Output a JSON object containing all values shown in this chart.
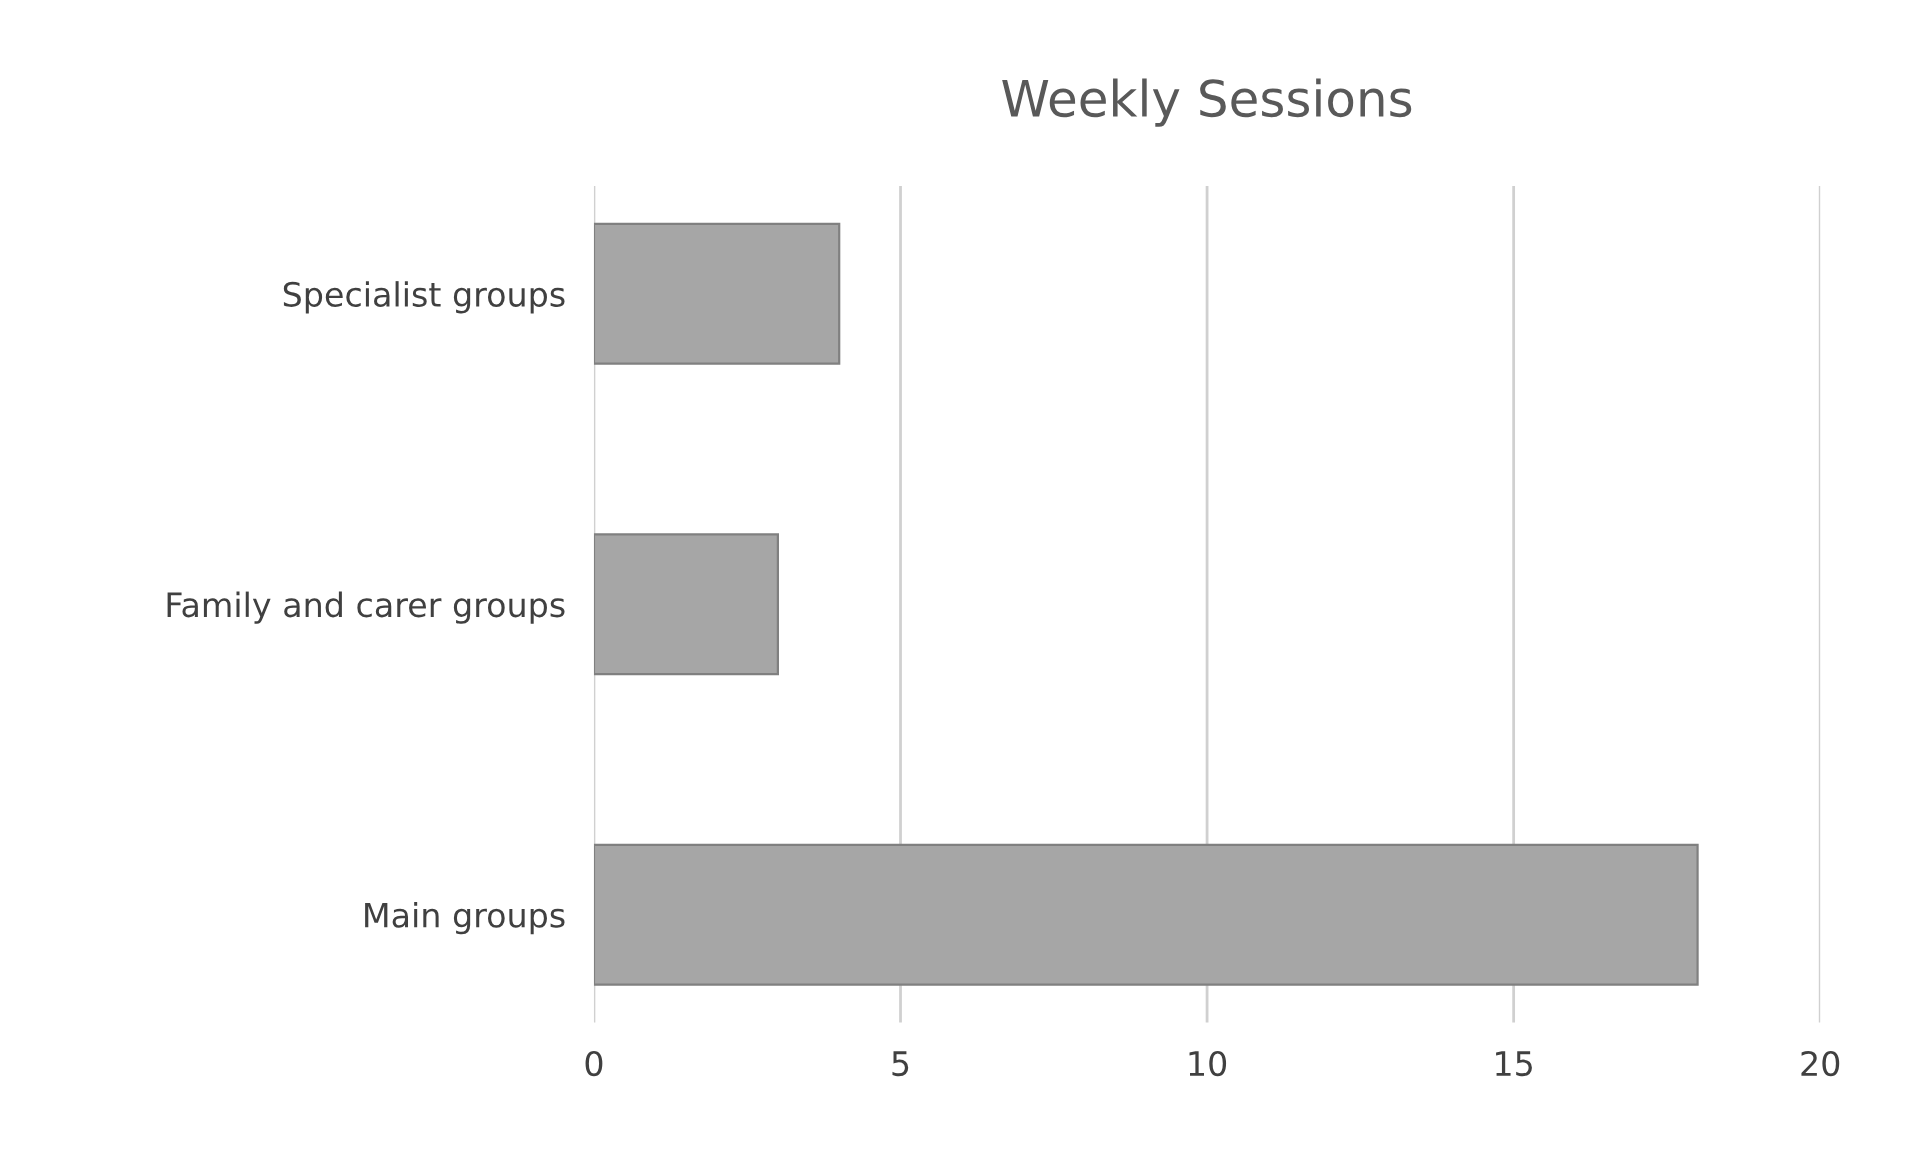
{
  "chart_data": {
    "type": "bar",
    "orientation": "horizontal",
    "title": "Weekly Sessions",
    "categories": [
      "Specialist groups",
      "Family and carer groups",
      "Main groups"
    ],
    "values": [
      4,
      3,
      18
    ],
    "color": "#a6a6a6",
    "xlim": [
      0,
      20
    ],
    "xticks": [
      0,
      5,
      10,
      15,
      20
    ],
    "grid": "x"
  }
}
